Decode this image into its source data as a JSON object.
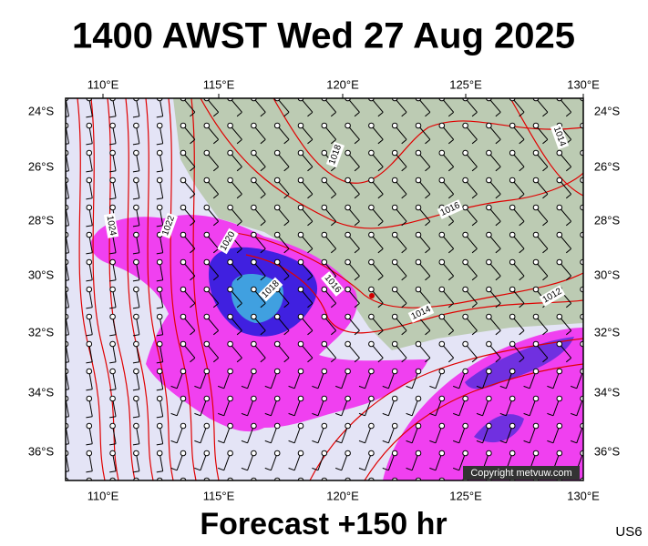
{
  "title": "1400 AWST Wed 27 Aug 2025",
  "longitude_labels": [
    "110°E",
    "115°E",
    "120°E",
    "125°E",
    "130°E"
  ],
  "latitude_labels": [
    "24°S",
    "26°S",
    "28°S",
    "30°S",
    "32°S",
    "34°S",
    "36°S"
  ],
  "isobar_labels": [
    "1024",
    "1022",
    "1020",
    "1018",
    "1018",
    "1016",
    "1016",
    "1014",
    "1014",
    "1012"
  ],
  "copyright": "Copyright metvuw.com",
  "footer": "Forecast +150 hr",
  "code": "US6"
}
